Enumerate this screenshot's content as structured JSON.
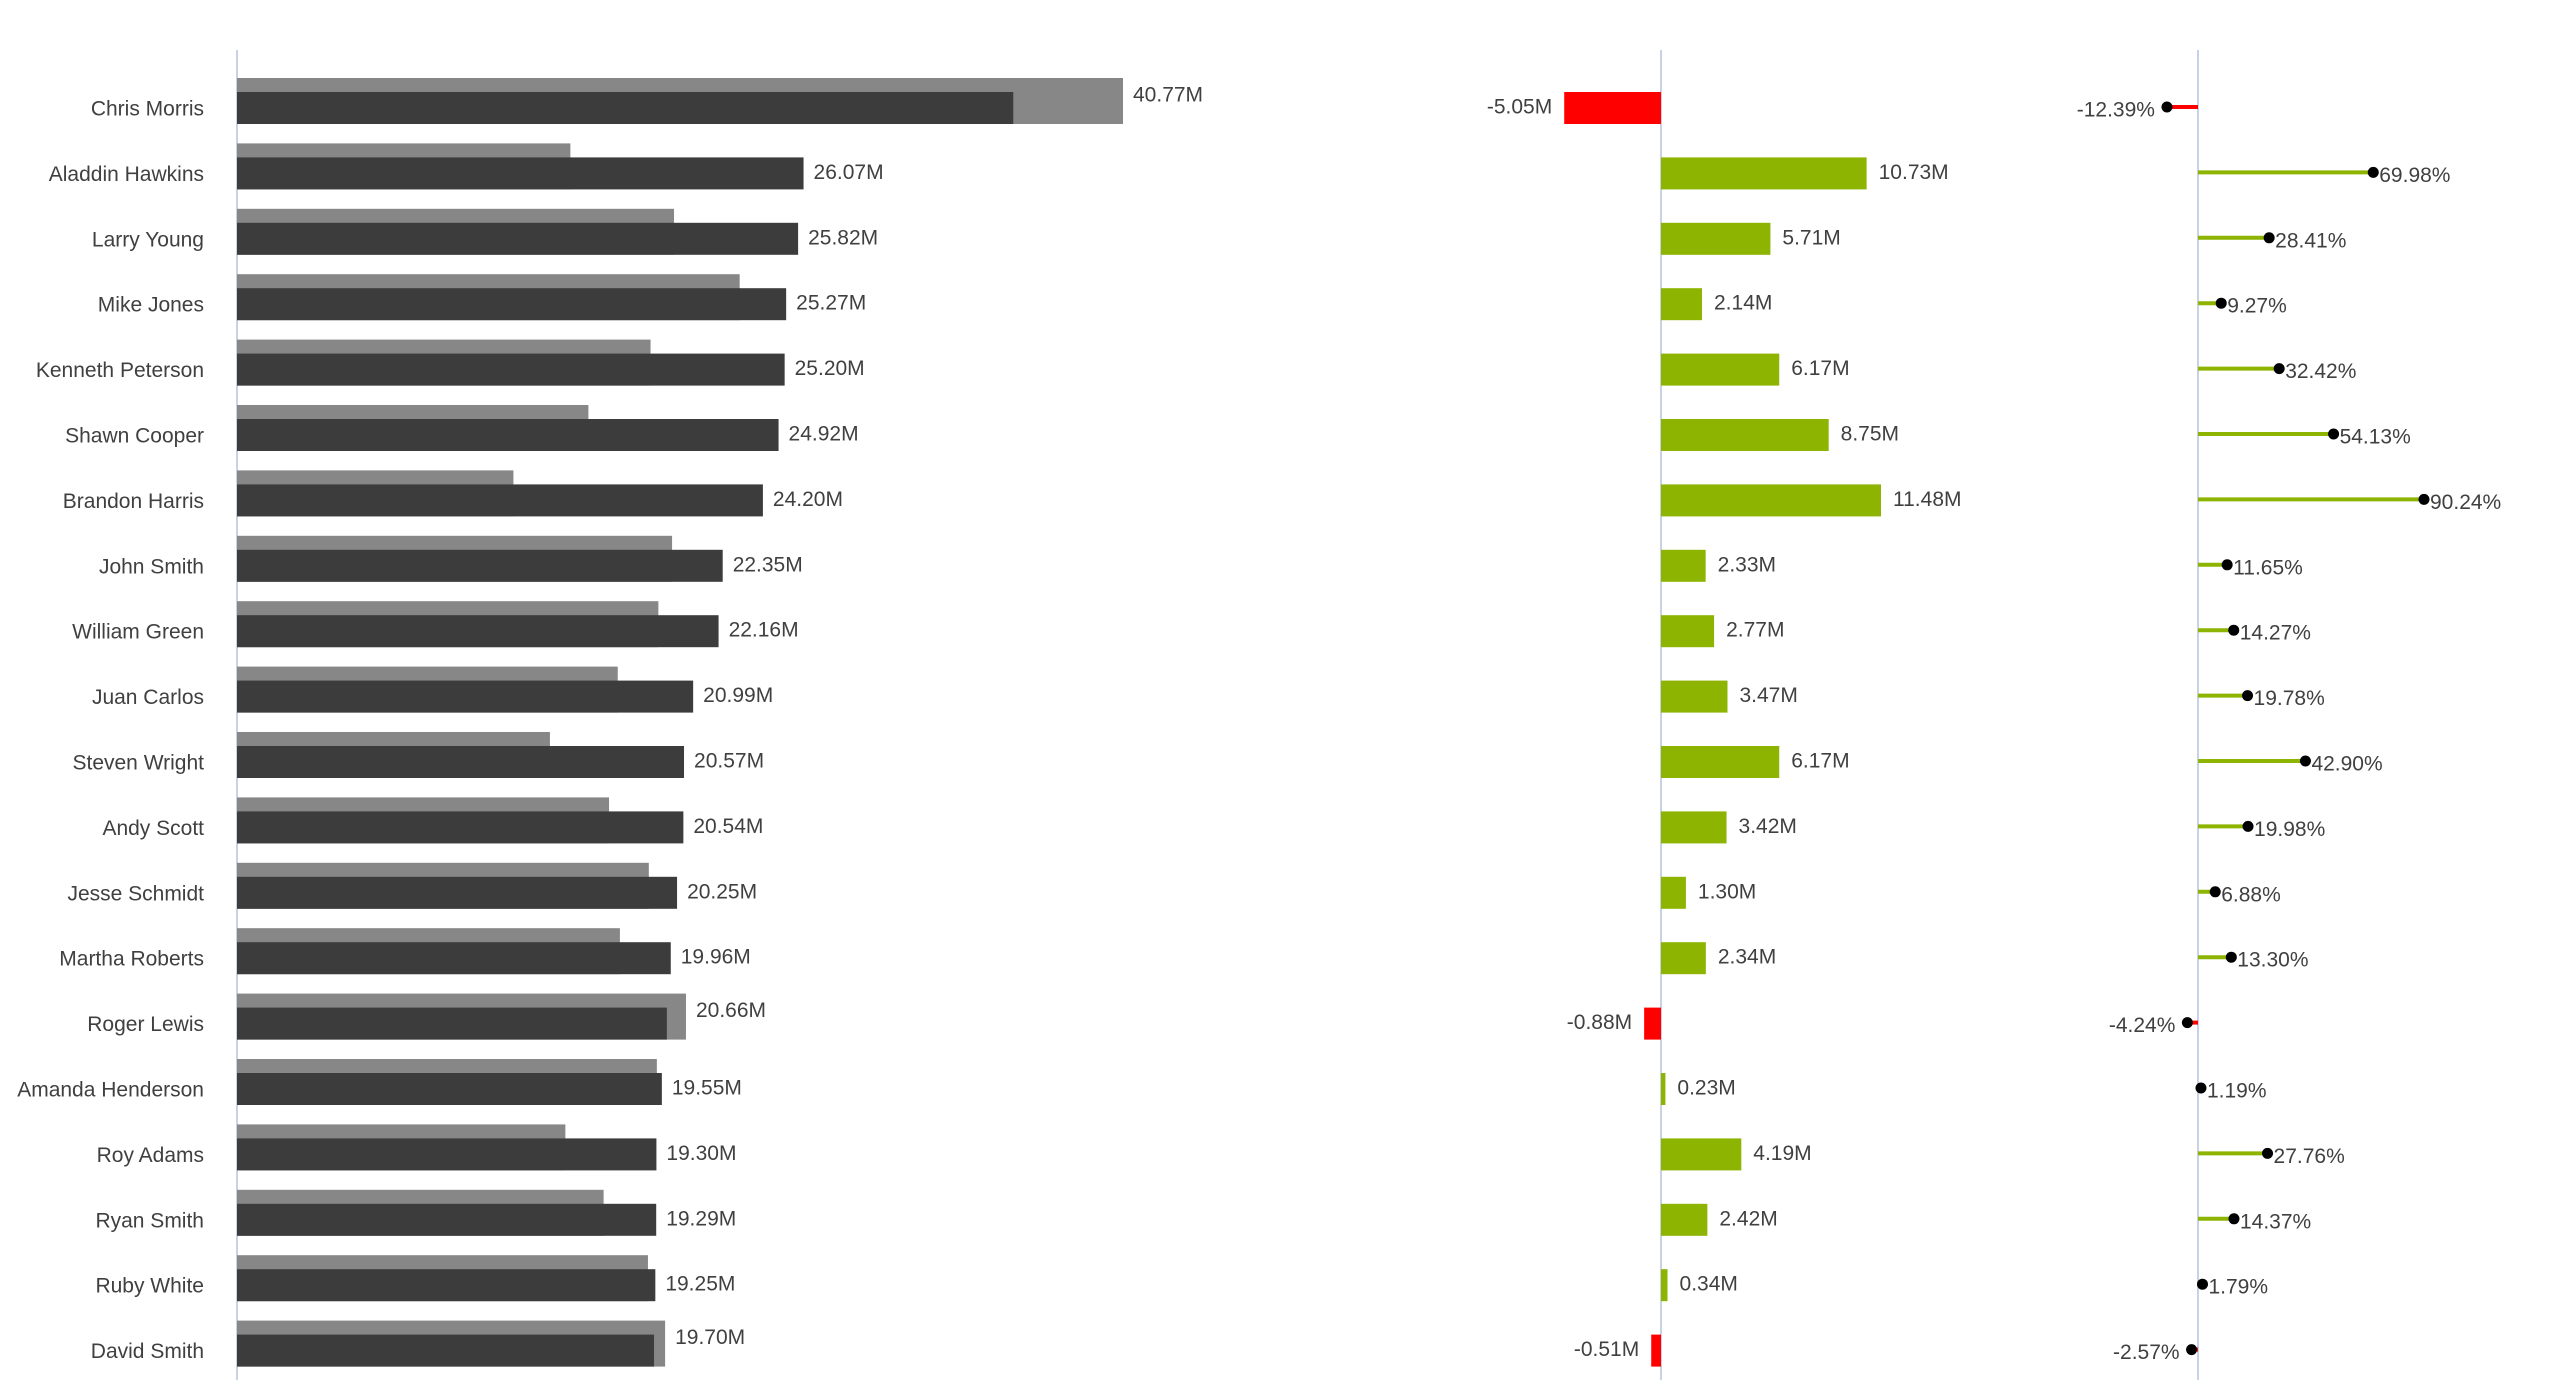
{
  "chart_data": {
    "type": "bar",
    "categories": [
      "Chris Morris",
      "Aladdin Hawkins",
      "Larry Young",
      "Mike Jones",
      "Kenneth Peterson",
      "Shawn Cooper",
      "Brandon Harris",
      "John Smith",
      "William Green",
      "Juan Carlos",
      "Steven Wright",
      "Andy Scott",
      "Jesse Schmidt",
      "Martha Roberts",
      "Roger Lewis",
      "Amanda Henderson",
      "Roy Adams",
      "Ryan Smith",
      "Ruby White",
      "David Smith"
    ],
    "series": [
      {
        "values": [
          35.72,
          26.07,
          25.82,
          25.27,
          25.2,
          24.92,
          24.2,
          22.35,
          22.16,
          20.99,
          20.57,
          20.54,
          20.25,
          19.96,
          19.78,
          19.55,
          19.3,
          19.29,
          19.25,
          19.19
        ]
      },
      {
        "values": [
          40.77,
          15.34,
          20.11,
          23.13,
          19.03,
          16.17,
          12.72,
          20.02,
          19.39,
          17.52,
          14.4,
          17.12,
          18.95,
          17.62,
          20.66,
          19.32,
          15.11,
          16.87,
          18.91,
          19.7
        ]
      },
      {
        "values": [
          -5.05,
          10.73,
          5.71,
          2.14,
          6.17,
          8.75,
          11.48,
          2.33,
          2.77,
          3.47,
          6.17,
          3.42,
          1.3,
          2.34,
          -0.88,
          0.23,
          4.19,
          2.42,
          0.34,
          -0.51
        ]
      },
      {
        "values": [
          -12.39,
          69.98,
          28.41,
          9.27,
          32.42,
          54.13,
          90.24,
          11.65,
          14.27,
          19.78,
          42.9,
          19.98,
          6.88,
          13.3,
          -4.24,
          1.19,
          27.76,
          14.37,
          1.79,
          -2.57
        ]
      }
    ],
    "value_labels": [
      "40.77M",
      "26.07M",
      "25.82M",
      "25.27M",
      "25.20M",
      "24.92M",
      "24.20M",
      "22.35M",
      "22.16M",
      "20.99M",
      "20.57M",
      "20.54M",
      "20.25M",
      "19.96M",
      "20.66M",
      "19.55M",
      "19.30M",
      "19.29M",
      "19.25M",
      "19.70M"
    ],
    "delta_labels": [
      "-5.05M",
      "10.73M",
      "5.71M",
      "2.14M",
      "6.17M",
      "8.75M",
      "11.48M",
      "2.33M",
      "2.77M",
      "3.47M",
      "6.17M",
      "3.42M",
      "1.30M",
      "2.34M",
      "-0.88M",
      "0.23M",
      "4.19M",
      "2.42M",
      "0.34M",
      "-0.51M"
    ],
    "pct_labels": [
      "-12.39%",
      "69.98%",
      "28.41%",
      "9.27%",
      "32.42%",
      "54.13%",
      "90.24%",
      "11.65%",
      "14.27%",
      "19.78%",
      "42.90%",
      "19.98%",
      "6.88%",
      "13.30%",
      "-4.24%",
      "1.19%",
      "27.76%",
      "14.37%",
      "1.79%",
      "-2.57%"
    ],
    "xlim_values": [
      0,
      40.77
    ],
    "xlim_delta": [
      -5.05,
      11.48
    ],
    "xlim_pct": [
      -12.39,
      90.24
    ],
    "grid": false,
    "legend": "none",
    "colors": {
      "current": "#3c3c3c",
      "previous": "#878787",
      "positive": "#8cb400",
      "negative": "#ff0000",
      "axis": "#c8d2e6",
      "marker": "#000000",
      "text": "#404040"
    }
  }
}
